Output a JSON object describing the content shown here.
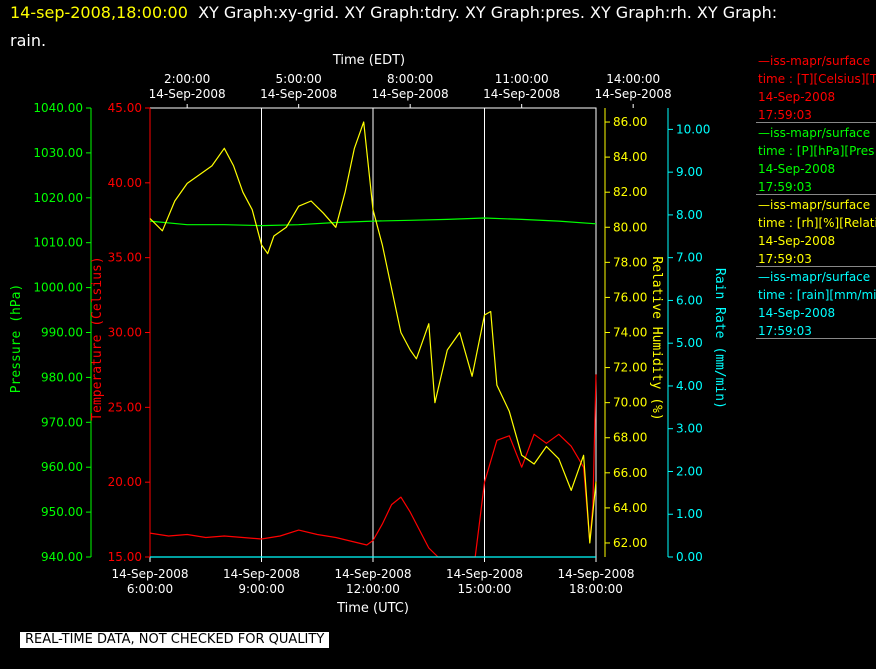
{
  "header": {
    "timestamp": "14-sep-2008,18:00:00",
    "titles_line1": "XY Graph:xy-grid.  XY Graph:tdry.  XY Graph:pres.  XY Graph:rh.  XY Graph:",
    "titles_line2": "rain."
  },
  "disclaimer": "REAL-TIME DATA, NOT CHECKED FOR QUALITY",
  "legend": [
    {
      "line1": "—iss-mapr/surface",
      "line2": "time : [T][Celsius][T",
      "date": "14-Sep-2008",
      "time": "17:59:03",
      "color": "#ff0000"
    },
    {
      "line1": "—iss-mapr/surface",
      "line2": "time : [P][hPa][Pres",
      "date": "14-Sep-2008",
      "time": "17:59:03",
      "color": "#00ff00"
    },
    {
      "line1": "—iss-mapr/surface",
      "line2": "time : [rh][%][Relati",
      "date": "14-Sep-2008",
      "time": "17:59:03",
      "color": "#ffff00"
    },
    {
      "line1": "—iss-mapr/surface",
      "line2": "time : [rain][mm/min",
      "date": "14-Sep-2008",
      "time": "17:59:03",
      "color": "#00ffff"
    }
  ],
  "chart_data": {
    "type": "line",
    "x_top": {
      "label": "Time (EDT)",
      "ticks": [
        {
          "time": "2:00:00",
          "date": "14-Sep-2008"
        },
        {
          "time": "5:00:00",
          "date": "14-Sep-2008"
        },
        {
          "time": "8:00:00",
          "date": "14-Sep-2008"
        },
        {
          "time": "11:00:00",
          "date": "14-Sep-2008"
        },
        {
          "time": "14:00:00",
          "date": "14-Sep-2008"
        }
      ]
    },
    "x_bottom": {
      "label": "Time (UTC)",
      "range": [
        "2008-09-14 06:00:00",
        "2008-09-14 18:00:00"
      ],
      "ticks": [
        {
          "date": "14-Sep-2008",
          "time": "6:00:00"
        },
        {
          "date": "14-Sep-2008",
          "time": "9:00:00"
        },
        {
          "date": "14-Sep-2008",
          "time": "12:00:00"
        },
        {
          "date": "14-Sep-2008",
          "time": "15:00:00"
        },
        {
          "date": "14-Sep-2008",
          "time": "18:00:00"
        }
      ]
    },
    "axes": {
      "pressure": {
        "label": "Pressure (hPa)",
        "color": "#00ff00",
        "range": [
          940,
          1040
        ],
        "ticks": [
          "940.00",
          "950.00",
          "960.00",
          "970.00",
          "980.00",
          "990.00",
          "1000.00",
          "1010.00",
          "1020.00",
          "1030.00",
          "1040.00"
        ]
      },
      "temperature": {
        "label": "Temperature (Celsius)",
        "color": "#ff0000",
        "range": [
          15,
          45
        ],
        "ticks": [
          "15.00",
          "20.00",
          "25.00",
          "30.00",
          "35.00",
          "40.00",
          "45.00"
        ]
      },
      "humidity": {
        "label": "Relative Humidity (%)",
        "color": "#ffff00",
        "range": [
          61.2,
          86.8
        ],
        "ticks": [
          "62.00",
          "64.00",
          "66.00",
          "68.00",
          "70.00",
          "72.00",
          "74.00",
          "76.00",
          "78.00",
          "80.00",
          "82.00",
          "84.00",
          "86.00"
        ]
      },
      "rain": {
        "label": "Rain Rate (mm/min)",
        "color": "#00ffff",
        "range": [
          0,
          10.5
        ],
        "ticks": [
          "0.00",
          "1.00",
          "2.00",
          "3.00",
          "4.00",
          "5.00",
          "6.00",
          "7.00",
          "8.00",
          "9.00",
          "10.00"
        ]
      }
    },
    "grid": "vertical",
    "series": [
      {
        "key": "temperature",
        "color": "#ff0000",
        "x": [
          "06:00",
          "06:30",
          "07:00",
          "07:30",
          "08:00",
          "08:30",
          "09:00",
          "09:30",
          "10:00",
          "10:30",
          "11:00",
          "11:30",
          "11:50",
          "12:00",
          "12:15",
          "12:30",
          "12:45",
          "13:00",
          "13:30",
          "13:45",
          "14:30",
          "14:45",
          "15:00",
          "15:20",
          "15:40",
          "16:00",
          "16:20",
          "16:40",
          "17:00",
          "17:20",
          "17:40",
          "17:50",
          "17:55",
          "18:00"
        ],
        "y": [
          16.6,
          16.4,
          16.5,
          16.3,
          16.4,
          16.3,
          16.2,
          16.4,
          16.8,
          16.5,
          16.3,
          16.0,
          15.8,
          16.1,
          17.2,
          18.5,
          19.0,
          18.0,
          15.6,
          15.0,
          15.0,
          15.0,
          20.0,
          22.8,
          23.1,
          21.0,
          23.2,
          22.6,
          23.2,
          22.4,
          21.0,
          16.0,
          18.5,
          27.2
        ]
      },
      {
        "key": "pressure",
        "color": "#00ff00",
        "x": [
          "06:00",
          "07:00",
          "08:00",
          "09:00",
          "10:00",
          "11:00",
          "12:00",
          "13:00",
          "14:00",
          "15:00",
          "16:00",
          "17:00",
          "18:00"
        ],
        "y": [
          1014.8,
          1014.0,
          1014.0,
          1013.8,
          1014.0,
          1014.5,
          1014.8,
          1015.0,
          1015.2,
          1015.5,
          1015.2,
          1014.8,
          1014.2
        ]
      },
      {
        "key": "humidity",
        "color": "#ffff00",
        "x": [
          "06:00",
          "06:20",
          "06:40",
          "07:00",
          "07:20",
          "07:40",
          "08:00",
          "08:15",
          "08:30",
          "08:45",
          "09:00",
          "09:10",
          "09:20",
          "09:40",
          "10:00",
          "10:20",
          "10:40",
          "11:00",
          "11:15",
          "11:30",
          "11:45",
          "12:00",
          "12:15",
          "12:30",
          "12:45",
          "13:00",
          "13:10",
          "13:20",
          "13:30",
          "13:40",
          "14:00",
          "14:20",
          "14:40",
          "15:00",
          "15:10",
          "15:20",
          "15:40",
          "16:00",
          "16:20",
          "16:40",
          "17:00",
          "17:20",
          "17:40",
          "17:50",
          "18:00"
        ],
        "y": [
          80.5,
          79.8,
          81.5,
          82.5,
          83.0,
          83.5,
          84.5,
          83.5,
          82.0,
          81.0,
          79.0,
          78.5,
          79.5,
          80.0,
          81.2,
          81.5,
          80.8,
          80.0,
          82.0,
          84.5,
          86.0,
          81.0,
          79.0,
          76.5,
          74.0,
          73.0,
          72.5,
          73.5,
          74.5,
          70.0,
          73.0,
          74.0,
          71.5,
          75.0,
          75.2,
          71.0,
          69.5,
          67.0,
          66.5,
          67.5,
          66.8,
          65.0,
          67.0,
          62.0,
          65.5
        ]
      },
      {
        "key": "rain",
        "color": "#00ffff",
        "x": [
          "06:00",
          "18:00"
        ],
        "y": [
          0.0,
          0.0
        ]
      }
    ]
  }
}
